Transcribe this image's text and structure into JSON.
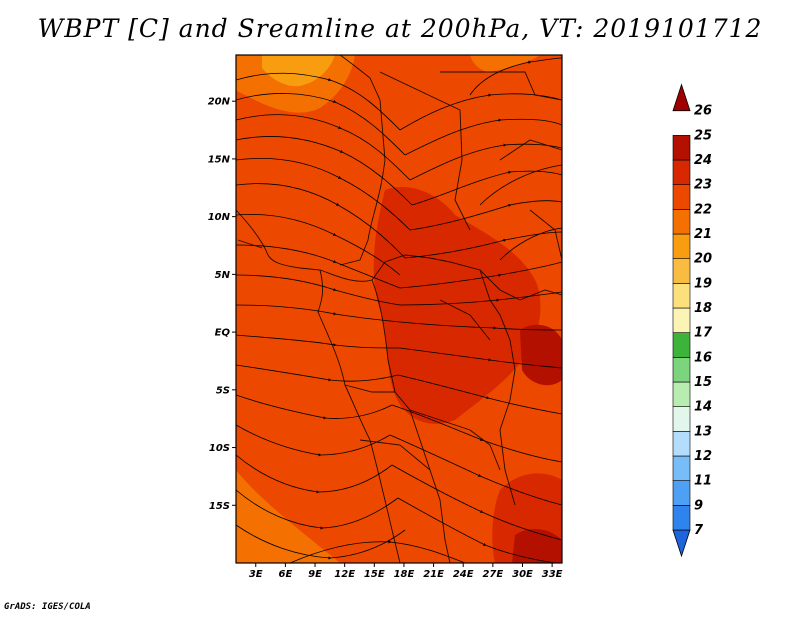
{
  "title": "WBPT [C] and Sreamline at 200hPa, VT: 2019101712",
  "credit": "GrADS: IGES/COLA",
  "map": {
    "lat_range": [
      -20,
      24
    ],
    "lon_range": [
      1,
      34
    ],
    "lat_labels": [
      {
        "lat": 20,
        "text": "20N"
      },
      {
        "lat": 15,
        "text": "15N"
      },
      {
        "lat": 10,
        "text": "10N"
      },
      {
        "lat": 5,
        "text": "5N"
      },
      {
        "lat": 0,
        "text": "EQ"
      },
      {
        "lat": -5,
        "text": "5S"
      },
      {
        "lat": -10,
        "text": "10S"
      },
      {
        "lat": -15,
        "text": "15S"
      }
    ],
    "lon_labels": [
      {
        "lon": 3,
        "text": "3E"
      },
      {
        "lon": 6,
        "text": "6E"
      },
      {
        "lon": 9,
        "text": "9E"
      },
      {
        "lon": 12,
        "text": "12E"
      },
      {
        "lon": 15,
        "text": "15E"
      },
      {
        "lon": 18,
        "text": "18E"
      },
      {
        "lon": 21,
        "text": "21E"
      },
      {
        "lon": 24,
        "text": "24E"
      },
      {
        "lon": 27,
        "text": "27E"
      },
      {
        "lon": 30,
        "text": "30E"
      },
      {
        "lon": 33,
        "text": "33E"
      }
    ]
  },
  "colorbar": {
    "colors": [
      "#1e64dc",
      "#2e84ec",
      "#4ea0f4",
      "#78bcf8",
      "#b4dcfc",
      "#e2f6ec",
      "#b8ecb0",
      "#7cd47c",
      "#3cb43c",
      "#fcf4b4",
      "#fce07c",
      "#f8bc40",
      "#f89c10",
      "#f47000",
      "#ec4800",
      "#d82800",
      "#b41000",
      "#a00000"
    ],
    "labels": [
      "7",
      "9",
      "11",
      "12",
      "13",
      "14",
      "15",
      "16",
      "17",
      "18",
      "19",
      "20",
      "21",
      "22",
      "23",
      "24",
      "25",
      "26"
    ]
  },
  "colors": {
    "field_base": "#ec4800",
    "field_dark": "#d82800",
    "field_warm": "#f47000",
    "field_orange": "#f89c10"
  }
}
